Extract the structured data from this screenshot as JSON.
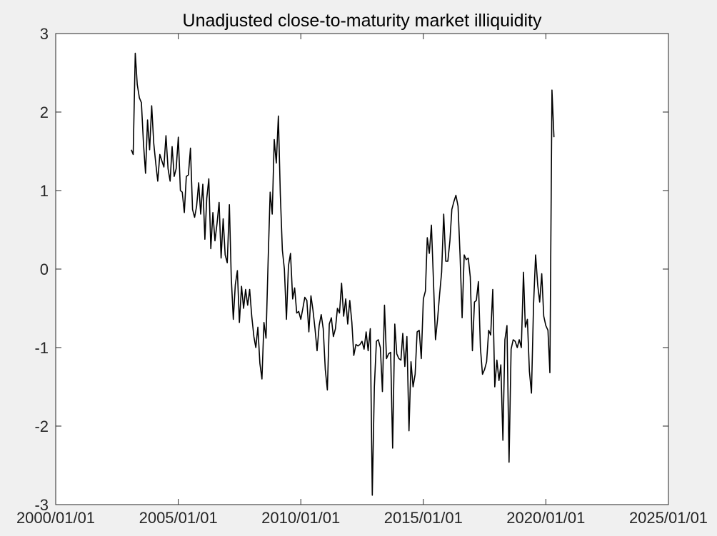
{
  "chart_data": {
    "type": "line",
    "title": "Unadjusted close-to-maturity market illiquidity",
    "xlabel": "",
    "ylabel": "",
    "x_axis": "date",
    "xlim": [
      "2000/01/01",
      "2025/01/01"
    ],
    "ylim": [
      -3,
      3
    ],
    "x_ticks": [
      "2000/01/01",
      "2005/01/01",
      "2010/01/01",
      "2015/01/01",
      "2020/01/01",
      "2025/01/01"
    ],
    "y_ticks": [
      -3,
      -2,
      -1,
      0,
      1,
      2,
      3
    ],
    "grid": false,
    "legend": "none",
    "line_color": "#000000",
    "series": [
      {
        "x": [
          "2003/02/01",
          "2003/03/01",
          "2003/04/01",
          "2003/05/01",
          "2003/06/01",
          "2003/07/01",
          "2003/08/01",
          "2003/09/01",
          "2003/10/01",
          "2003/11/01",
          "2003/12/01",
          "2004/01/01",
          "2004/02/01",
          "2004/03/01",
          "2004/04/01",
          "2004/05/01",
          "2004/06/01",
          "2004/07/01",
          "2004/08/01",
          "2004/09/01",
          "2004/10/01",
          "2004/11/01",
          "2004/12/01",
          "2005/01/01",
          "2005/02/01",
          "2005/03/01",
          "2005/04/01",
          "2005/05/01",
          "2005/06/01",
          "2005/07/01",
          "2005/08/01",
          "2005/09/01",
          "2005/10/01",
          "2005/11/01",
          "2005/12/01",
          "2006/01/01",
          "2006/02/01",
          "2006/03/01",
          "2006/04/01",
          "2006/05/01",
          "2006/06/01",
          "2006/07/01",
          "2006/08/01",
          "2006/09/01",
          "2006/10/01",
          "2006/11/01",
          "2006/12/01",
          "2007/01/01",
          "2007/02/01",
          "2007/03/01",
          "2007/04/01",
          "2007/05/01",
          "2007/06/01",
          "2007/07/01",
          "2007/08/01",
          "2007/09/01",
          "2007/10/01",
          "2007/11/01",
          "2007/12/01",
          "2008/01/01",
          "2008/02/01",
          "2008/03/01",
          "2008/04/01",
          "2008/05/01",
          "2008/06/01",
          "2008/07/01",
          "2008/08/01",
          "2008/09/01",
          "2008/10/01",
          "2008/11/01",
          "2008/12/01",
          "2009/01/01",
          "2009/02/01",
          "2009/03/01",
          "2009/04/01",
          "2009/05/01",
          "2009/06/01",
          "2009/07/01",
          "2009/08/01",
          "2009/09/01",
          "2009/10/01",
          "2009/11/01",
          "2009/12/01",
          "2010/01/01",
          "2010/02/01",
          "2010/03/01",
          "2010/04/01",
          "2010/05/01",
          "2010/06/01",
          "2010/07/01",
          "2010/08/01",
          "2010/09/01",
          "2010/10/01",
          "2010/11/01",
          "2010/12/01",
          "2011/01/01",
          "2011/02/01",
          "2011/03/01",
          "2011/04/01",
          "2011/05/01",
          "2011/06/01",
          "2011/07/01",
          "2011/08/01",
          "2011/09/01",
          "2011/10/01",
          "2011/11/01",
          "2011/12/01",
          "2012/01/01",
          "2012/02/01",
          "2012/03/01",
          "2012/04/01",
          "2012/05/01",
          "2012/06/01",
          "2012/07/01",
          "2012/08/01",
          "2012/09/01",
          "2012/10/01",
          "2012/11/01",
          "2012/12/01",
          "2013/01/01",
          "2013/02/01",
          "2013/03/01",
          "2013/04/01",
          "2013/05/01",
          "2013/06/01",
          "2013/07/01",
          "2013/08/01",
          "2013/09/01",
          "2013/10/01",
          "2013/11/01",
          "2013/12/01",
          "2014/01/01",
          "2014/02/01",
          "2014/03/01",
          "2014/04/01",
          "2014/05/01",
          "2014/06/01",
          "2014/07/01",
          "2014/08/01",
          "2014/09/01",
          "2014/10/01",
          "2014/11/01",
          "2014/12/01",
          "2015/01/01",
          "2015/02/01",
          "2015/03/01",
          "2015/04/01",
          "2015/05/01",
          "2015/06/01",
          "2015/07/01",
          "2015/08/01",
          "2015/09/01",
          "2015/10/01",
          "2015/11/01",
          "2015/12/01",
          "2016/01/01",
          "2016/02/01",
          "2016/03/01",
          "2016/04/01",
          "2016/05/01",
          "2016/06/01",
          "2016/07/01",
          "2016/08/01",
          "2016/09/01",
          "2016/10/01",
          "2016/11/01",
          "2016/12/01",
          "2017/01/01",
          "2017/02/01",
          "2017/03/01",
          "2017/04/01",
          "2017/05/01",
          "2017/06/01",
          "2017/07/01",
          "2017/08/01",
          "2017/09/01",
          "2017/10/01",
          "2017/11/01",
          "2017/12/01",
          "2018/01/01",
          "2018/02/01",
          "2018/03/01",
          "2018/04/01",
          "2018/05/01",
          "2018/06/01",
          "2018/07/01",
          "2018/08/01",
          "2018/09/01",
          "2018/10/01",
          "2018/11/01",
          "2018/12/01",
          "2019/01/01",
          "2019/02/01",
          "2019/03/01",
          "2019/04/01",
          "2019/05/01",
          "2019/06/01",
          "2019/07/01",
          "2019/08/01",
          "2019/09/01",
          "2019/10/01",
          "2019/11/01",
          "2019/12/01",
          "2020/01/01",
          "2020/02/01",
          "2020/03/01",
          "2020/04/01",
          "2020/05/01"
        ],
        "y": [
          1.52,
          1.46,
          2.75,
          2.35,
          2.18,
          2.12,
          1.6,
          1.22,
          1.9,
          1.52,
          2.08,
          1.6,
          1.34,
          1.12,
          1.46,
          1.38,
          1.3,
          1.7,
          1.28,
          1.12,
          1.56,
          1.18,
          1.28,
          1.68,
          1.0,
          0.98,
          0.72,
          1.18,
          1.2,
          1.54,
          0.76,
          0.66,
          0.8,
          1.1,
          0.7,
          1.08,
          0.38,
          0.9,
          1.15,
          0.26,
          0.72,
          0.36,
          0.58,
          0.85,
          0.14,
          0.64,
          0.18,
          0.08,
          0.82,
          -0.1,
          -0.64,
          -0.2,
          -0.02,
          -0.68,
          -0.22,
          -0.5,
          -0.26,
          -0.46,
          -0.26,
          -0.6,
          -0.86,
          -1.0,
          -0.74,
          -1.2,
          -1.4,
          -0.68,
          -0.88,
          0.12,
          0.98,
          0.7,
          1.65,
          1.35,
          1.95,
          0.96,
          0.24,
          0.0,
          -0.64,
          0.04,
          0.2,
          -0.38,
          -0.24,
          -0.56,
          -0.54,
          -0.64,
          -0.5,
          -0.36,
          -0.4,
          -0.8,
          -0.34,
          -0.52,
          -0.76,
          -1.04,
          -0.72,
          -0.58,
          -0.76,
          -1.28,
          -1.54,
          -0.7,
          -0.62,
          -0.86,
          -0.76,
          -0.5,
          -0.56,
          -0.18,
          -0.6,
          -0.38,
          -0.7,
          -0.4,
          -0.68,
          -1.1,
          -0.96,
          -0.98,
          -0.96,
          -0.92,
          -1.02,
          -0.8,
          -1.04,
          -0.76,
          -2.88,
          -1.5,
          -0.92,
          -0.9,
          -1.0,
          -1.56,
          -0.46,
          -1.14,
          -1.08,
          -1.06,
          -2.28,
          -0.7,
          -1.08,
          -1.14,
          -1.16,
          -0.82,
          -1.24,
          -0.86,
          -2.06,
          -1.18,
          -1.5,
          -1.34,
          -0.8,
          -0.78,
          -1.14,
          -0.38,
          -0.28,
          0.4,
          0.2,
          0.56,
          -0.16,
          -0.9,
          -0.64,
          -0.32,
          -0.04,
          0.7,
          0.1,
          0.1,
          0.36,
          0.76,
          0.86,
          0.94,
          0.8,
          0.18,
          -0.62,
          0.18,
          0.12,
          0.14,
          -0.1,
          -1.04,
          -0.42,
          -0.4,
          -0.16,
          -1.0,
          -1.34,
          -1.28,
          -1.18,
          -0.78,
          -0.84,
          -0.26,
          -1.5,
          -1.16,
          -1.42,
          -1.22,
          -2.18,
          -0.9,
          -0.72,
          -2.46,
          -1.02,
          -0.9,
          -0.92,
          -1.0,
          -0.9,
          -1.0,
          -0.04,
          -0.74,
          -0.64,
          -1.3,
          -1.58,
          -0.46,
          0.18,
          -0.2,
          -0.42,
          -0.06,
          -0.6,
          -0.72,
          -0.78,
          -1.32,
          2.28,
          1.68
        ]
      }
    ]
  }
}
